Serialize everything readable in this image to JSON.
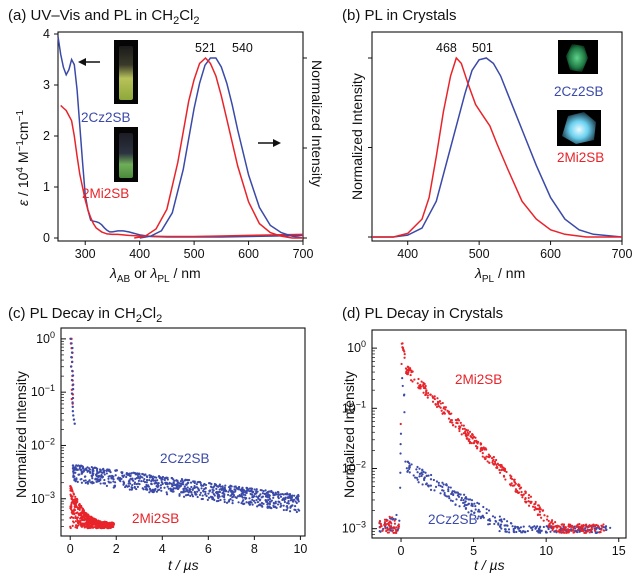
{
  "chart_data": [
    {
      "id": "a",
      "type": "line",
      "title_prefix": "(a) UV–Vis and PL in CH",
      "title_sub": "2",
      "title_mid": "Cl",
      "title_sub2": "2",
      "xlabel_parts": [
        "λ",
        "AB",
        " or ",
        "λ",
        "PL",
        " / nm"
      ],
      "ylabel_left_parts": [
        "ε",
        " / 10",
        "4",
        " M",
        "−1",
        "cm",
        "−1"
      ],
      "ylabel_right": "Normalized Intensity",
      "xlim": [
        250,
        700
      ],
      "ylim_left": [
        0,
        4
      ],
      "ylim_right": [
        0,
        1.0
      ],
      "xticks": [
        300,
        400,
        500,
        600,
        700
      ],
      "yticks_left": [
        0,
        1,
        2,
        3,
        4
      ],
      "peak_labels": [
        "521",
        "540"
      ],
      "peak_x": [
        521,
        540
      ],
      "series_labels": [
        "2Cz2SB",
        "2Mi2SB"
      ],
      "colors": {
        "2Cz2SB": "#3b4aa8",
        "2Mi2SB": "#e8242a"
      },
      "series": [
        {
          "name": "2Cz2SB",
          "kind": "absorption",
          "x": [
            250,
            255,
            260,
            265,
            270,
            275,
            280,
            285,
            290,
            295,
            300,
            305,
            310,
            315,
            320,
            325,
            330,
            335,
            340,
            345,
            350,
            360,
            370,
            380,
            390,
            400,
            420,
            450,
            500,
            550,
            600,
            650,
            700
          ],
          "y": [
            3.95,
            3.6,
            3.35,
            3.2,
            3.3,
            3.5,
            3.4,
            2.9,
            2.2,
            1.5,
            0.85,
            0.55,
            0.35,
            0.33,
            0.32,
            0.3,
            0.26,
            0.2,
            0.15,
            0.12,
            0.12,
            0.14,
            0.14,
            0.12,
            0.09,
            0.06,
            0.03,
            0.02,
            0.02,
            0.02,
            0.03,
            0.04,
            0.05
          ]
        },
        {
          "name": "2Mi2SB",
          "kind": "absorption",
          "x": [
            255,
            260,
            265,
            270,
            275,
            280,
            285,
            290,
            295,
            300,
            305,
            310,
            315,
            320,
            330,
            340,
            350,
            360,
            370,
            380,
            400,
            450,
            500,
            550,
            600,
            650,
            700
          ],
          "y": [
            2.6,
            2.55,
            2.5,
            2.4,
            2.3,
            2.0,
            1.6,
            1.25,
            1.0,
            0.75,
            0.55,
            0.4,
            0.28,
            0.2,
            0.12,
            0.08,
            0.07,
            0.07,
            0.06,
            0.05,
            0.04,
            0.03,
            0.03,
            0.04,
            0.05,
            0.06,
            0.07
          ]
        },
        {
          "name": "2Cz2SB",
          "kind": "PL",
          "x": [
            400,
            420,
            440,
            460,
            480,
            500,
            510,
            520,
            530,
            540,
            550,
            560,
            570,
            580,
            600,
            620,
            640,
            660,
            680,
            700
          ],
          "y": [
            0.0,
            0.01,
            0.04,
            0.14,
            0.38,
            0.72,
            0.86,
            0.96,
            1.0,
            1.0,
            0.95,
            0.86,
            0.74,
            0.6,
            0.35,
            0.17,
            0.07,
            0.03,
            0.01,
            0.0
          ]
        },
        {
          "name": "2Mi2SB",
          "kind": "PL",
          "x": [
            390,
            410,
            430,
            450,
            470,
            490,
            500,
            510,
            521,
            530,
            540,
            550,
            560,
            580,
            600,
            620,
            640,
            660,
            680,
            700
          ],
          "y": [
            0.0,
            0.01,
            0.05,
            0.16,
            0.42,
            0.76,
            0.88,
            0.97,
            1.0,
            0.97,
            0.9,
            0.79,
            0.66,
            0.4,
            0.2,
            0.08,
            0.03,
            0.01,
            0.0,
            0.0
          ]
        }
      ]
    },
    {
      "id": "b",
      "type": "line",
      "title": "(b) PL in Crystals",
      "xlabel_parts": [
        "λ",
        "PL",
        " / nm"
      ],
      "ylabel": "Normalized Intensity",
      "xlim": [
        350,
        700
      ],
      "ylim": [
        0,
        1.0
      ],
      "xticks": [
        400,
        500,
        600,
        700
      ],
      "peak_labels": [
        "468",
        "501"
      ],
      "peak_x": [
        468,
        501
      ],
      "series_labels": [
        "2Cz2SB",
        "2Mi2SB"
      ],
      "series": [
        {
          "name": "2Cz2SB",
          "x": [
            350,
            380,
            400,
            420,
            440,
            460,
            480,
            490,
            500,
            510,
            520,
            530,
            540,
            560,
            580,
            600,
            620,
            640,
            660,
            700
          ],
          "y": [
            0.0,
            0.0,
            0.01,
            0.05,
            0.2,
            0.5,
            0.8,
            0.93,
            0.99,
            1.0,
            0.97,
            0.9,
            0.8,
            0.6,
            0.4,
            0.22,
            0.1,
            0.04,
            0.015,
            0.0
          ]
        },
        {
          "name": "2Mi2SB",
          "x": [
            350,
            380,
            400,
            420,
            430,
            440,
            450,
            460,
            468,
            475,
            485,
            495,
            505,
            515,
            525,
            540,
            560,
            580,
            600,
            620,
            650,
            700
          ],
          "y": [
            0.0,
            0.0,
            0.02,
            0.1,
            0.22,
            0.45,
            0.7,
            0.9,
            1.0,
            0.97,
            0.85,
            0.74,
            0.68,
            0.62,
            0.52,
            0.38,
            0.2,
            0.1,
            0.04,
            0.015,
            0.0,
            0.0
          ]
        }
      ]
    },
    {
      "id": "c",
      "type": "scatter",
      "title_prefix": "(c) PL Decay in CH",
      "title_sub": "2",
      "title_mid": "Cl",
      "title_sub2": "2",
      "xlabel": "t / µs",
      "ylabel": "Normalized Intensity",
      "scale_y": "log",
      "xlim": [
        -0.4,
        10.2
      ],
      "ylim": [
        0.0002,
        1.6
      ],
      "xticks": [
        0,
        2,
        4,
        6,
        8,
        10
      ],
      "ytick_labels": [
        {
          "v": 0.001,
          "base": "10",
          "exp": "−3"
        },
        {
          "v": 0.01,
          "base": "10",
          "exp": "−2"
        },
        {
          "v": 0.1,
          "base": "10",
          "exp": "−1"
        },
        {
          "v": 1,
          "base": "10",
          "exp": "0"
        }
      ],
      "series_labels": [
        "2Cz2SB",
        "2Mi2SB"
      ],
      "series": [
        {
          "name": "2Cz2SB",
          "tau_short_us": 0.03,
          "amp_long": 0.0032,
          "tau_long_us": 7.5,
          "x_range": [
            0,
            9.95
          ]
        },
        {
          "name": "2Mi2SB",
          "tau_us": 0.02,
          "floor": 0.00028,
          "x_range": [
            0,
            1.9
          ]
        }
      ]
    },
    {
      "id": "d",
      "type": "scatter",
      "title": "(d) PL Decay in Crystals",
      "xlabel": "t / µs",
      "ylabel": "Normalized Intensity",
      "scale_y": "log",
      "xlim": [
        -2,
        15.5
      ],
      "ylim": [
        0.0007,
        2.0
      ],
      "xticks": [
        0,
        5,
        10,
        15
      ],
      "ytick_labels": [
        {
          "v": 0.001,
          "base": "10",
          "exp": "−3"
        },
        {
          "v": 0.01,
          "base": "10",
          "exp": "−2"
        },
        {
          "v": 0.1,
          "base": "10",
          "exp": "−1"
        },
        {
          "v": 1,
          "base": "10",
          "exp": "0"
        }
      ],
      "series_labels": [
        "2Mi2SB",
        "2Cz2SB"
      ],
      "series": [
        {
          "name": "2Mi2SB",
          "amp": 0.55,
          "tau_us": 1.7,
          "x_range": [
            -1.5,
            14
          ]
        },
        {
          "name": "2Cz2SB",
          "amp": 0.012,
          "tau_us": 3.0,
          "x_range": [
            -1.5,
            14.5
          ]
        }
      ]
    }
  ]
}
